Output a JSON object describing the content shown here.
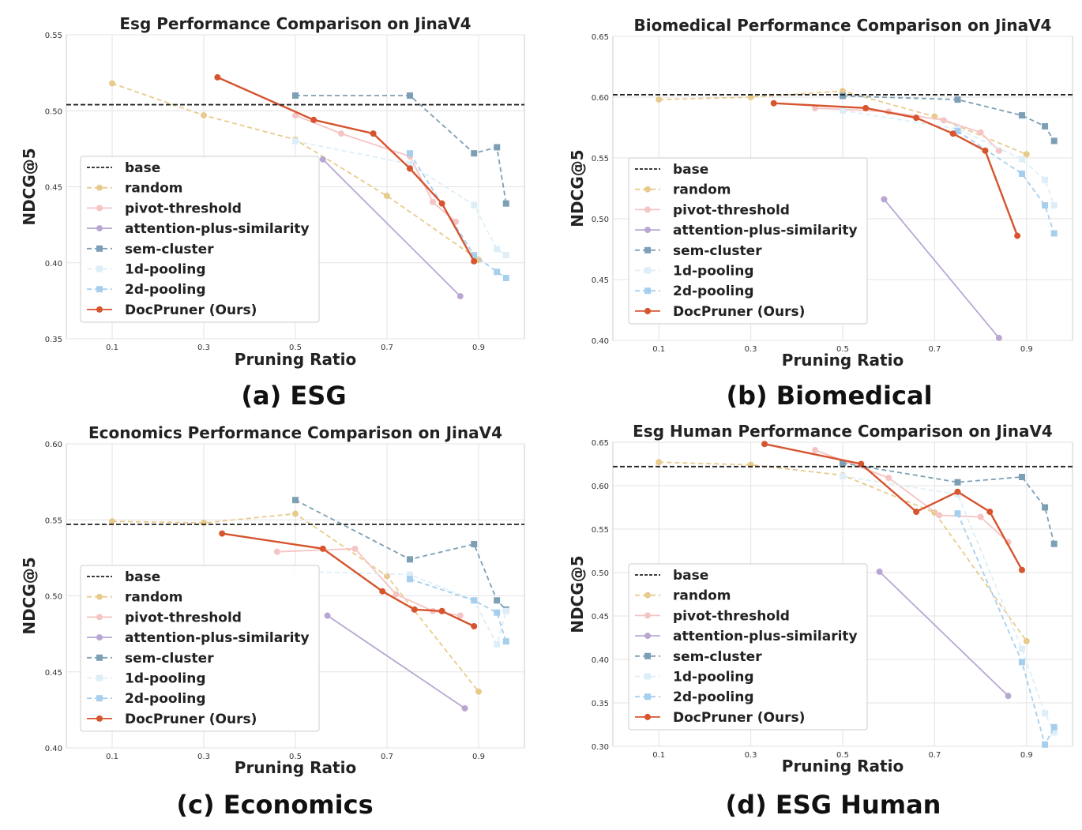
{
  "captions": {
    "a": "(a) ESG",
    "b": "(b) Biomedical",
    "c": "(c) Economics",
    "d": "(d) ESG Human"
  },
  "chart_data": [
    {
      "type": "line",
      "title": "Esg Performance Comparison on JinaV4",
      "xlabel": "Pruning Ratio",
      "ylabel": "NDCG@5",
      "xlim": [
        0.0,
        1.0
      ],
      "ylim": [
        0.35,
        0.55
      ],
      "xticks": [
        0.1,
        0.3,
        0.5,
        0.7,
        0.9
      ],
      "xtick_labels": [
        "0.1",
        "0.3",
        "0.5",
        "0.7",
        "0.9"
      ],
      "yticks": [
        0.35,
        0.4,
        0.45,
        0.5,
        0.55
      ],
      "ytick_labels": [
        "0.35",
        "0.40",
        "0.45",
        "0.50",
        "0.55"
      ],
      "base": 0.504,
      "legend_position": "center-left",
      "series": [
        {
          "name": "random",
          "color": "#e8cb8c",
          "marker": "circle",
          "dash": true,
          "x": [
            0.1,
            0.3,
            0.5,
            0.7,
            0.9
          ],
          "y": [
            0.518,
            0.497,
            0.481,
            0.444,
            0.402
          ]
        },
        {
          "name": "pivot-threshold",
          "color": "#f5c4c4",
          "marker": "circle",
          "dash": false,
          "x": [
            0.5,
            0.6,
            0.75,
            0.8,
            0.85
          ],
          "y": [
            0.497,
            0.485,
            0.47,
            0.44,
            0.427
          ]
        },
        {
          "name": "attention-plus-similarity",
          "color": "#b9a7d3",
          "marker": "circle",
          "dash": false,
          "x": [
            0.56,
            0.86
          ],
          "y": [
            0.468,
            0.378
          ]
        },
        {
          "name": "sem-cluster",
          "color": "#7d9fb5",
          "marker": "square",
          "dash": true,
          "x": [
            0.5,
            0.75,
            0.89,
            0.94,
            0.96
          ],
          "y": [
            0.51,
            0.51,
            0.472,
            0.476,
            0.439
          ]
        },
        {
          "name": "1d-pooling",
          "color": "#ddeef8",
          "marker": "square",
          "dash": true,
          "x": [
            0.5,
            0.75,
            0.89,
            0.94,
            0.96
          ],
          "y": [
            0.48,
            0.465,
            0.438,
            0.409,
            0.405
          ]
        },
        {
          "name": "2d-pooling",
          "color": "#a6cfee",
          "marker": "square",
          "dash": true,
          "x": [
            0.75,
            0.89,
            0.94,
            0.96
          ],
          "y": [
            0.472,
            0.405,
            0.394,
            0.39
          ]
        },
        {
          "name": "DocPruner (Ours)",
          "color": "#d6542e",
          "marker": "circle",
          "dash": false,
          "x": [
            0.33,
            0.54,
            0.67,
            0.75,
            0.82,
            0.89
          ],
          "y": [
            0.522,
            0.494,
            0.485,
            0.462,
            0.439,
            0.401
          ]
        }
      ]
    },
    {
      "type": "line",
      "title": "Biomedical Performance Comparison on JinaV4",
      "xlabel": "Pruning Ratio",
      "ylabel": "NDCG@5",
      "xlim": [
        0.0,
        1.0
      ],
      "ylim": [
        0.4,
        0.65
      ],
      "xticks": [
        0.1,
        0.3,
        0.5,
        0.7,
        0.9
      ],
      "xtick_labels": [
        "0.1",
        "0.3",
        "0.5",
        "0.7",
        "0.9"
      ],
      "yticks": [
        0.4,
        0.45,
        0.5,
        0.55,
        0.6,
        0.65
      ],
      "ytick_labels": [
        "0.40",
        "0.45",
        "0.50",
        "0.55",
        "0.60",
        "0.65"
      ],
      "base": 0.602,
      "legend_position": "center-left",
      "series": [
        {
          "name": "random",
          "color": "#e8cb8c",
          "marker": "circle",
          "dash": true,
          "x": [
            0.1,
            0.3,
            0.5,
            0.7,
            0.9
          ],
          "y": [
            0.598,
            0.6,
            0.605,
            0.584,
            0.553
          ]
        },
        {
          "name": "pivot-threshold",
          "color": "#f5c4c4",
          "marker": "circle",
          "dash": false,
          "x": [
            0.44,
            0.6,
            0.72,
            0.8,
            0.84
          ],
          "y": [
            0.591,
            0.588,
            0.581,
            0.571,
            0.556
          ]
        },
        {
          "name": "attention-plus-similarity",
          "color": "#b9a7d3",
          "marker": "circle",
          "dash": false,
          "x": [
            0.59,
            0.84
          ],
          "y": [
            0.516,
            0.402
          ]
        },
        {
          "name": "sem-cluster",
          "color": "#7d9fb5",
          "marker": "square",
          "dash": true,
          "x": [
            0.5,
            0.75,
            0.89,
            0.94,
            0.96
          ],
          "y": [
            0.601,
            0.598,
            0.585,
            0.576,
            0.564
          ]
        },
        {
          "name": "1d-pooling",
          "color": "#ddeef8",
          "marker": "square",
          "dash": true,
          "x": [
            0.5,
            0.75,
            0.89,
            0.94,
            0.96
          ],
          "y": [
            0.589,
            0.574,
            0.549,
            0.532,
            0.511
          ]
        },
        {
          "name": "2d-pooling",
          "color": "#a6cfee",
          "marker": "square",
          "dash": true,
          "x": [
            0.75,
            0.89,
            0.94,
            0.96
          ],
          "y": [
            0.572,
            0.537,
            0.511,
            0.488
          ]
        },
        {
          "name": "DocPruner (Ours)",
          "color": "#d6542e",
          "marker": "circle",
          "dash": false,
          "x": [
            0.35,
            0.55,
            0.66,
            0.74,
            0.81,
            0.88
          ],
          "y": [
            0.595,
            0.591,
            0.583,
            0.57,
            0.556,
            0.486
          ]
        }
      ]
    },
    {
      "type": "line",
      "title": "Economics Performance Comparison on JinaV4",
      "xlabel": "Pruning Ratio",
      "ylabel": "NDCG@5",
      "xlim": [
        0.0,
        1.0
      ],
      "ylim": [
        0.4,
        0.6
      ],
      "xticks": [
        0.1,
        0.3,
        0.5,
        0.7,
        0.9
      ],
      "xtick_labels": [
        "0.1",
        "0.3",
        "0.5",
        "0.7",
        "0.9"
      ],
      "yticks": [
        0.4,
        0.45,
        0.5,
        0.55,
        0.6
      ],
      "ytick_labels": [
        "0.40",
        "0.45",
        "0.50",
        "0.55",
        "0.60"
      ],
      "base": 0.547,
      "legend_position": "lower-left",
      "series": [
        {
          "name": "random",
          "color": "#e8cb8c",
          "marker": "circle",
          "dash": true,
          "x": [
            0.1,
            0.3,
            0.5,
            0.7,
            0.9
          ],
          "y": [
            0.549,
            0.548,
            0.554,
            0.513,
            0.437
          ]
        },
        {
          "name": "pivot-threshold",
          "color": "#f5c4c4",
          "marker": "circle",
          "dash": false,
          "x": [
            0.46,
            0.63,
            0.72,
            0.8,
            0.86
          ],
          "y": [
            0.529,
            0.531,
            0.501,
            0.49,
            0.487
          ]
        },
        {
          "name": "attention-plus-similarity",
          "color": "#b9a7d3",
          "marker": "circle",
          "dash": false,
          "x": [
            0.57,
            0.87
          ],
          "y": [
            0.487,
            0.426
          ]
        },
        {
          "name": "sem-cluster",
          "color": "#7d9fb5",
          "marker": "square",
          "dash": true,
          "x": [
            0.5,
            0.75,
            0.89,
            0.94,
            0.96
          ],
          "y": [
            0.563,
            0.524,
            0.534,
            0.497,
            0.491
          ]
        },
        {
          "name": "1d-pooling",
          "color": "#ddeef8",
          "marker": "square",
          "dash": true,
          "x": [
            0.5,
            0.75,
            0.89,
            0.94,
            0.96
          ],
          "y": [
            0.516,
            0.514,
            0.497,
            0.468,
            0.49
          ]
        },
        {
          "name": "2d-pooling",
          "color": "#a6cfee",
          "marker": "square",
          "dash": true,
          "x": [
            0.75,
            0.89,
            0.94,
            0.96
          ],
          "y": [
            0.511,
            0.497,
            0.489,
            0.47
          ]
        },
        {
          "name": "DocPruner (Ours)",
          "color": "#d6542e",
          "marker": "circle",
          "dash": false,
          "x": [
            0.34,
            0.56,
            0.69,
            0.76,
            0.82,
            0.89
          ],
          "y": [
            0.541,
            0.531,
            0.503,
            0.491,
            0.49,
            0.48
          ]
        }
      ]
    },
    {
      "type": "line",
      "title": "Esg Human Performance Comparison on JinaV4",
      "xlabel": "Pruning Ratio",
      "ylabel": "NDCG@5",
      "xlim": [
        0.0,
        1.0
      ],
      "ylim": [
        0.3,
        0.65
      ],
      "xticks": [
        0.1,
        0.3,
        0.5,
        0.7,
        0.9
      ],
      "xtick_labels": [
        "0.1",
        "0.3",
        "0.5",
        "0.7",
        "0.9"
      ],
      "yticks": [
        0.3,
        0.35,
        0.4,
        0.45,
        0.5,
        0.55,
        0.6,
        0.65
      ],
      "ytick_labels": [
        "0.30",
        "0.35",
        "0.40",
        "0.45",
        "0.50",
        "0.55",
        "0.60",
        "0.65"
      ],
      "base": 0.622,
      "legend_position": "lower-left",
      "series": [
        {
          "name": "random",
          "color": "#e8cb8c",
          "marker": "circle",
          "dash": true,
          "x": [
            0.1,
            0.3,
            0.5,
            0.7,
            0.9
          ],
          "y": [
            0.627,
            0.624,
            0.612,
            0.569,
            0.421
          ]
        },
        {
          "name": "pivot-threshold",
          "color": "#f5c4c4",
          "marker": "circle",
          "dash": false,
          "x": [
            0.44,
            0.6,
            0.71,
            0.8,
            0.86
          ],
          "y": [
            0.641,
            0.609,
            0.566,
            0.564,
            0.535
          ]
        },
        {
          "name": "attention-plus-similarity",
          "color": "#b9a7d3",
          "marker": "circle",
          "dash": false,
          "x": [
            0.58,
            0.86
          ],
          "y": [
            0.501,
            0.358
          ]
        },
        {
          "name": "sem-cluster",
          "color": "#7d9fb5",
          "marker": "square",
          "dash": true,
          "x": [
            0.5,
            0.75,
            0.89,
            0.94,
            0.96
          ],
          "y": [
            0.626,
            0.604,
            0.61,
            0.575,
            0.533
          ]
        },
        {
          "name": "1d-pooling",
          "color": "#ddeef8",
          "marker": "square",
          "dash": true,
          "x": [
            0.5,
            0.75,
            0.89,
            0.94,
            0.96
          ],
          "y": [
            0.611,
            0.59,
            0.412,
            0.338,
            0.316
          ]
        },
        {
          "name": "2d-pooling",
          "color": "#a6cfee",
          "marker": "square",
          "dash": true,
          "x": [
            0.75,
            0.89,
            0.94,
            0.96
          ],
          "y": [
            0.568,
            0.397,
            0.302,
            0.322
          ]
        },
        {
          "name": "DocPruner (Ours)",
          "color": "#d6542e",
          "marker": "circle",
          "dash": false,
          "x": [
            0.33,
            0.54,
            0.66,
            0.75,
            0.82,
            0.89
          ],
          "y": [
            0.648,
            0.625,
            0.57,
            0.593,
            0.57,
            0.503
          ]
        }
      ]
    }
  ]
}
